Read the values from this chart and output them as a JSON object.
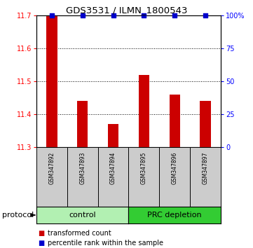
{
  "title": "GDS3531 / ILMN_1800543",
  "samples": [
    "GSM347892",
    "GSM347893",
    "GSM347894",
    "GSM347895",
    "GSM347896",
    "GSM347897"
  ],
  "red_values": [
    11.7,
    11.44,
    11.37,
    11.52,
    11.46,
    11.44
  ],
  "blue_values": [
    100,
    100,
    100,
    100,
    100,
    100
  ],
  "ylim_left": [
    11.3,
    11.7
  ],
  "ylim_right": [
    0,
    100
  ],
  "yticks_left": [
    11.3,
    11.4,
    11.5,
    11.6,
    11.7
  ],
  "yticks_right": [
    0,
    25,
    50,
    75,
    100
  ],
  "bar_base": 11.3,
  "groups": [
    {
      "label": "control",
      "indices": [
        0,
        1,
        2
      ],
      "color": "#b2f0b2"
    },
    {
      "label": "PRC depletion",
      "indices": [
        3,
        4,
        5
      ],
      "color": "#33cc33"
    }
  ],
  "bar_color": "#cc0000",
  "dot_color": "#0000cc",
  "bg_color": "#ffffff",
  "sample_box_color": "#cccccc",
  "legend_red_label": "transformed count",
  "legend_blue_label": "percentile rank within the sample",
  "protocol_label": "protocol",
  "grid_ticks": [
    11.4,
    11.5,
    11.6
  ],
  "right_tick_labels": [
    "0",
    "25",
    "50",
    "75",
    "100%"
  ]
}
